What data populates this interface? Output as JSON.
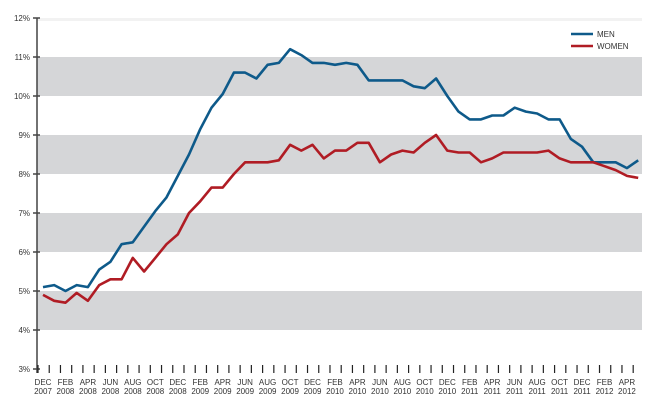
{
  "chart_data": {
    "type": "line",
    "title": "",
    "xlabel": "",
    "ylabel": "",
    "ylim": [
      3,
      12
    ],
    "yticks": [
      "3%",
      "4%",
      "5%",
      "6%",
      "7%",
      "8%",
      "9%",
      "10%",
      "11%",
      "12%"
    ],
    "x_tick_labels": [
      [
        "DEC",
        "2007"
      ],
      [
        "FEB",
        "2008"
      ],
      [
        "APR",
        "2008"
      ],
      [
        "JUN",
        "2008"
      ],
      [
        "AUG",
        "2008"
      ],
      [
        "OCT",
        "2008"
      ],
      [
        "DEC",
        "2008"
      ],
      [
        "FEB",
        "2009"
      ],
      [
        "APR",
        "2009"
      ],
      [
        "JUN",
        "2009"
      ],
      [
        "AUG",
        "2009"
      ],
      [
        "OCT",
        "2009"
      ],
      [
        "DEC",
        "2009"
      ],
      [
        "FEB",
        "2010"
      ],
      [
        "APR",
        "2010"
      ],
      [
        "JUN",
        "2010"
      ],
      [
        "AUG",
        "2010"
      ],
      [
        "OCT",
        "2010"
      ],
      [
        "DEC",
        "2010"
      ],
      [
        "FEB",
        "2011"
      ],
      [
        "APR",
        "2011"
      ],
      [
        "JUN",
        "2011"
      ],
      [
        "AUG",
        "2011"
      ],
      [
        "OCT",
        "2011"
      ],
      [
        "DEC",
        "2011"
      ],
      [
        "FEB",
        "2012"
      ],
      [
        "APR",
        "2012"
      ]
    ],
    "x_range": "Dec 2007 – May 2012 (monthly)",
    "grid": "alternating horizontal bands",
    "legend_position": "top-right",
    "series": [
      {
        "name": "MEN",
        "color": "#0e5a8a",
        "values": [
          5.1,
          5.15,
          5.0,
          5.15,
          5.1,
          5.55,
          5.75,
          6.2,
          6.25,
          6.65,
          7.05,
          7.4,
          7.95,
          8.5,
          9.15,
          9.7,
          10.05,
          10.6,
          10.6,
          10.45,
          10.8,
          10.85,
          11.2,
          11.05,
          10.85,
          10.85,
          10.8,
          10.85,
          10.8,
          10.4,
          10.4,
          10.4,
          10.4,
          10.25,
          10.2,
          10.45,
          10.0,
          9.6,
          9.4,
          9.4,
          9.5,
          9.5,
          9.7,
          9.6,
          9.55,
          9.4,
          9.4,
          8.9,
          8.7,
          8.3,
          8.3,
          8.3,
          8.15,
          8.35
        ]
      },
      {
        "name": "WOMEN",
        "color": "#b01c24",
        "values": [
          4.9,
          4.75,
          4.7,
          4.95,
          4.75,
          5.15,
          5.3,
          5.3,
          5.85,
          5.5,
          5.85,
          6.2,
          6.45,
          7.0,
          7.3,
          7.65,
          7.65,
          8.0,
          8.3,
          8.3,
          8.3,
          8.35,
          8.75,
          8.6,
          8.75,
          8.4,
          8.6,
          8.6,
          8.8,
          8.8,
          8.3,
          8.5,
          8.6,
          8.55,
          8.8,
          9.0,
          8.6,
          8.55,
          8.55,
          8.3,
          8.4,
          8.55,
          8.55,
          8.55,
          8.55,
          8.6,
          8.4,
          8.3,
          8.3,
          8.3,
          8.2,
          8.1,
          7.95,
          7.9
        ]
      }
    ]
  }
}
